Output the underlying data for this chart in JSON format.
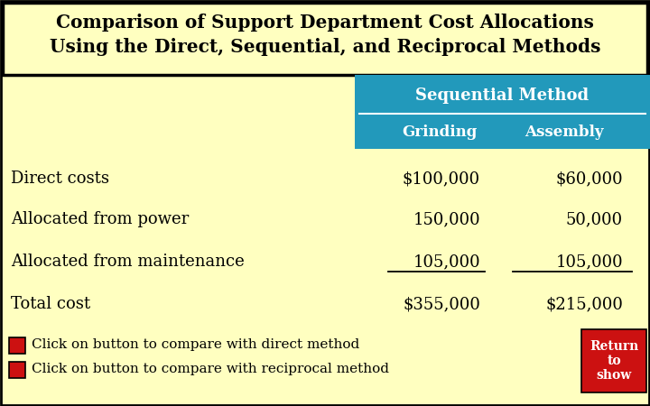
{
  "title_line1": "Comparison of Support Department Cost Allocations",
  "title_line2": "Using the Direct, Sequential, and Reciprocal Methods",
  "bg_color": "#FFFFC0",
  "header_bg_color": "#2299BB",
  "header_text_color": "#FFFFFF",
  "body_text_color": "#000000",
  "method_header": "Sequential Method",
  "col_headers": [
    "Grinding",
    "Assembly"
  ],
  "rows": [
    {
      "label": "Direct costs",
      "values": [
        "$100,000",
        "$60,000"
      ],
      "underline": false
    },
    {
      "label": "Allocated from power",
      "values": [
        "150,000",
        "50,000"
      ],
      "underline": false
    },
    {
      "label": "Allocated from maintenance",
      "values": [
        "105,000",
        "105,000"
      ],
      "underline": true
    },
    {
      "label": "Total cost",
      "values": [
        "$355,000",
        "$215,000"
      ],
      "underline": false
    }
  ],
  "footer_lines": [
    "Click on button to compare with direct method",
    "Click on button to compare with reciprocal method"
  ],
  "return_box_text": "Return\nto\nshow",
  "return_box_color": "#CC1111",
  "button_color": "#CC1111",
  "border_color": "#000000",
  "title_border_color": "#000000"
}
